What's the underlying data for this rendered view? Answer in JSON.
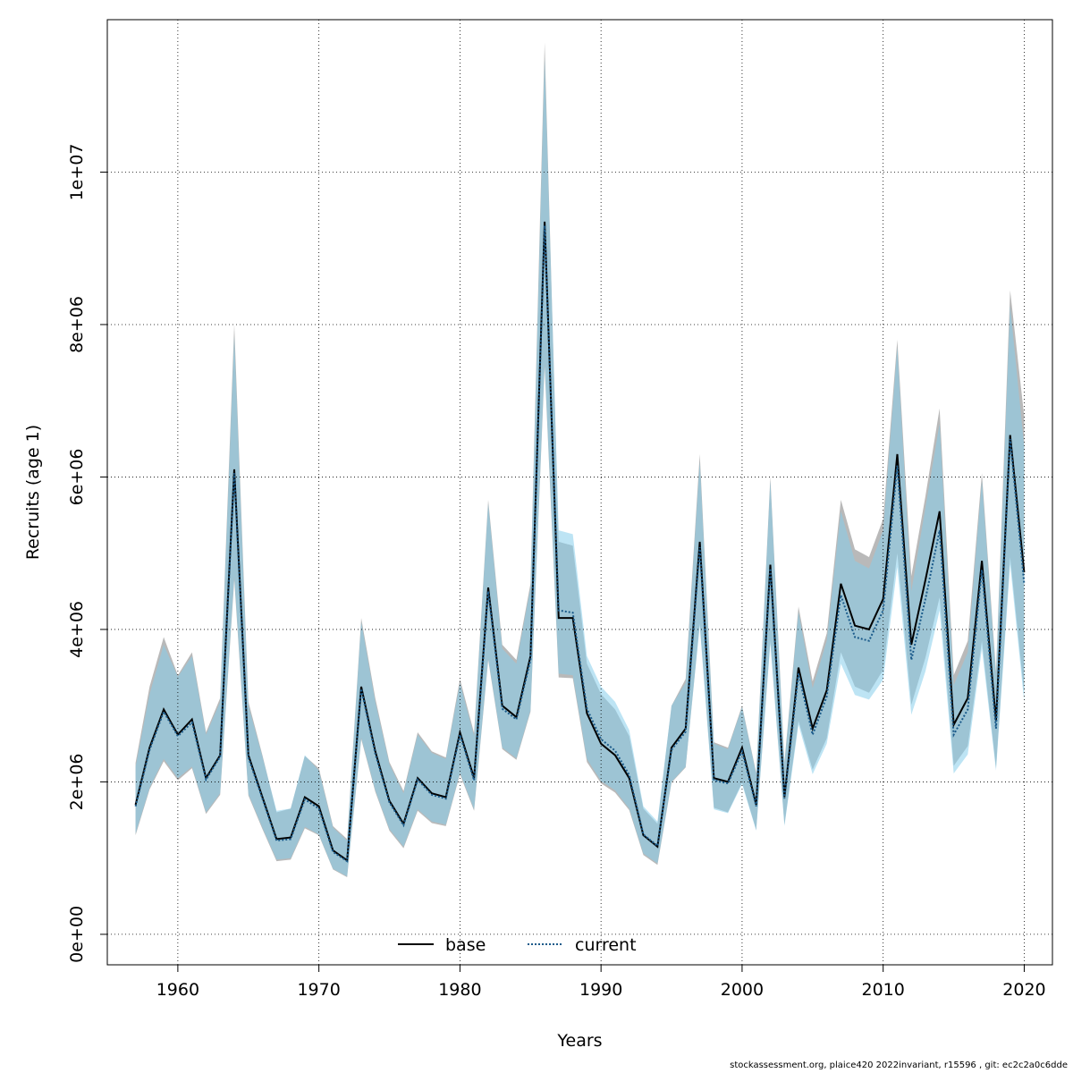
{
  "chart_data": {
    "type": "line",
    "title": "",
    "xlabel": "Years",
    "ylabel": "Recruits (age 1)",
    "xlim": [
      1955,
      2022
    ],
    "ylim": [
      -400000,
      12000000
    ],
    "x_ticks": [
      1960,
      1970,
      1980,
      1990,
      2000,
      2010,
      2020
    ],
    "x_tick_labels": [
      "1960",
      "1970",
      "1980",
      "1990",
      "2000",
      "2010",
      "2020"
    ],
    "y_ticks": [
      0,
      2000000,
      4000000,
      6000000,
      8000000,
      10000000
    ],
    "y_tick_labels": [
      "0e+00",
      "2e+06",
      "4e+06",
      "6e+06",
      "8e+06",
      "1e+07"
    ],
    "grid": true,
    "legend_position": "bottom",
    "x": [
      1957,
      1958,
      1959,
      1960,
      1961,
      1962,
      1963,
      1964,
      1965,
      1966,
      1967,
      1968,
      1969,
      1970,
      1971,
      1972,
      1973,
      1974,
      1975,
      1976,
      1977,
      1978,
      1979,
      1980,
      1981,
      1982,
      1983,
      1984,
      1985,
      1986,
      1987,
      1988,
      1989,
      1990,
      1991,
      1992,
      1993,
      1994,
      1995,
      1996,
      1997,
      1998,
      1999,
      2000,
      2001,
      2002,
      2003,
      2004,
      2005,
      2006,
      2007,
      2008,
      2009,
      2010,
      2011,
      2012,
      2013,
      2014,
      2015,
      2016,
      2017,
      2018,
      2019,
      2020
    ],
    "series": [
      {
        "name": "base",
        "line_style": "solid",
        "line_color": "#000000",
        "band_color": "#808080",
        "values": [
          1700000,
          2450000,
          2950000,
          2620000,
          2820000,
          2050000,
          2350000,
          6100000,
          2350000,
          1800000,
          1250000,
          1270000,
          1800000,
          1680000,
          1100000,
          970000,
          3250000,
          2400000,
          1750000,
          1450000,
          2050000,
          1850000,
          1800000,
          2650000,
          2050000,
          4550000,
          3000000,
          2850000,
          3650000,
          9350000,
          4150000,
          4150000,
          2900000,
          2500000,
          2350000,
          2050000,
          1300000,
          1150000,
          2450000,
          2700000,
          5150000,
          2050000,
          2000000,
          2450000,
          1700000,
          4850000,
          1800000,
          3500000,
          2700000,
          3200000,
          4600000,
          4050000,
          4000000,
          4400000,
          6300000,
          3800000,
          4650000,
          5550000,
          2750000,
          3100000,
          4900000,
          2800000,
          6550000,
          4750000
        ],
        "lower": [
          1300000,
          1900000,
          2270000,
          2020000,
          2180000,
          1580000,
          1830000,
          4650000,
          1820000,
          1380000,
          960000,
          980000,
          1390000,
          1300000,
          850000,
          750000,
          2560000,
          1870000,
          1360000,
          1130000,
          1620000,
          1460000,
          1420000,
          2100000,
          1620000,
          3600000,
          2430000,
          2290000,
          2920000,
          7450000,
          3370000,
          3360000,
          2260000,
          1980000,
          1860000,
          1630000,
          1040000,
          910000,
          1990000,
          2190000,
          4080000,
          1660000,
          1600000,
          1990000,
          1370000,
          3850000,
          1440000,
          2800000,
          2160000,
          2570000,
          3700000,
          3250000,
          3170000,
          3470000,
          5000000,
          3010000,
          3630000,
          4420000,
          2210000,
          2470000,
          3850000,
          2180000,
          4950000,
          3150000
        ],
        "upper": [
          2250000,
          3250000,
          3900000,
          3400000,
          3700000,
          2650000,
          3100000,
          8000000,
          3050000,
          2350000,
          1600000,
          1650000,
          2340000,
          2180000,
          1420000,
          1250000,
          4150000,
          3100000,
          2260000,
          1880000,
          2650000,
          2400000,
          2320000,
          3350000,
          2640000,
          5700000,
          3800000,
          3600000,
          4600000,
          11700000,
          5150000,
          5100000,
          3550000,
          3150000,
          2950000,
          2600000,
          1650000,
          1450000,
          3000000,
          3350000,
          6300000,
          2520000,
          2450000,
          3000000,
          2120000,
          6000000,
          2260000,
          4300000,
          3320000,
          3950000,
          5700000,
          5050000,
          4950000,
          5450000,
          7800000,
          4700000,
          5750000,
          6900000,
          3400000,
          3850000,
          6050000,
          3450000,
          8450000,
          6800000
        ]
      },
      {
        "name": "current",
        "line_style": "dotted",
        "line_color": "#1a5a8a",
        "band_color": "#87ceeb",
        "values": [
          1680000,
          2420000,
          2920000,
          2600000,
          2780000,
          2030000,
          2330000,
          6050000,
          2320000,
          1780000,
          1230000,
          1250000,
          1770000,
          1650000,
          1080000,
          960000,
          3220000,
          2370000,
          1730000,
          1430000,
          2030000,
          1830000,
          1780000,
          2620000,
          2020000,
          4500000,
          2960000,
          2820000,
          3600000,
          9300000,
          4250000,
          4220000,
          2960000,
          2560000,
          2410000,
          2090000,
          1310000,
          1160000,
          2420000,
          2660000,
          5080000,
          2020000,
          1980000,
          2400000,
          1680000,
          4800000,
          1780000,
          3420000,
          2620000,
          3120000,
          4450000,
          3900000,
          3850000,
          4250000,
          6150000,
          3600000,
          4400000,
          5300000,
          2620000,
          2950000,
          4780000,
          2700000,
          6500000,
          4600000
        ],
        "lower": [
          1320000,
          1920000,
          2300000,
          2050000,
          2200000,
          1600000,
          1850000,
          4700000,
          1840000,
          1400000,
          980000,
          1000000,
          1410000,
          1310000,
          860000,
          760000,
          2580000,
          1890000,
          1380000,
          1150000,
          1640000,
          1480000,
          1440000,
          2120000,
          1640000,
          3620000,
          2450000,
          2310000,
          2940000,
          7500000,
          3420000,
          3400000,
          2300000,
          2010000,
          1890000,
          1650000,
          1060000,
          930000,
          2000000,
          2200000,
          4050000,
          1640000,
          1590000,
          1970000,
          1360000,
          3820000,
          1420000,
          2750000,
          2100000,
          2500000,
          3550000,
          3140000,
          3080000,
          3340000,
          4820000,
          2880000,
          3450000,
          4250000,
          2110000,
          2360000,
          3750000,
          2150000,
          4850000,
          3050000
        ],
        "upper": [
          2200000,
          3150000,
          3800000,
          3380000,
          3650000,
          2620000,
          3050000,
          7850000,
          3000000,
          2330000,
          1620000,
          1650000,
          2350000,
          2150000,
          1400000,
          1230000,
          4100000,
          3050000,
          2230000,
          1850000,
          2620000,
          2380000,
          2300000,
          3300000,
          2600000,
          5650000,
          3750000,
          3550000,
          4550000,
          11500000,
          5300000,
          5250000,
          3650000,
          3250000,
          3050000,
          2680000,
          1680000,
          1480000,
          3000000,
          3300000,
          6200000,
          2500000,
          2430000,
          2980000,
          2100000,
          5950000,
          2230000,
          4230000,
          3230000,
          3850000,
          5550000,
          4900000,
          4800000,
          5300000,
          7700000,
          4500000,
          5600000,
          6700000,
          3270000,
          3700000,
          5950000,
          3380000,
          8250000,
          6400000
        ]
      }
    ],
    "legend": [
      "base",
      "current"
    ],
    "footer": "stockassessment.org, plaice420  2022invariant, r15596 , git: ec2c2a0c6dde"
  }
}
